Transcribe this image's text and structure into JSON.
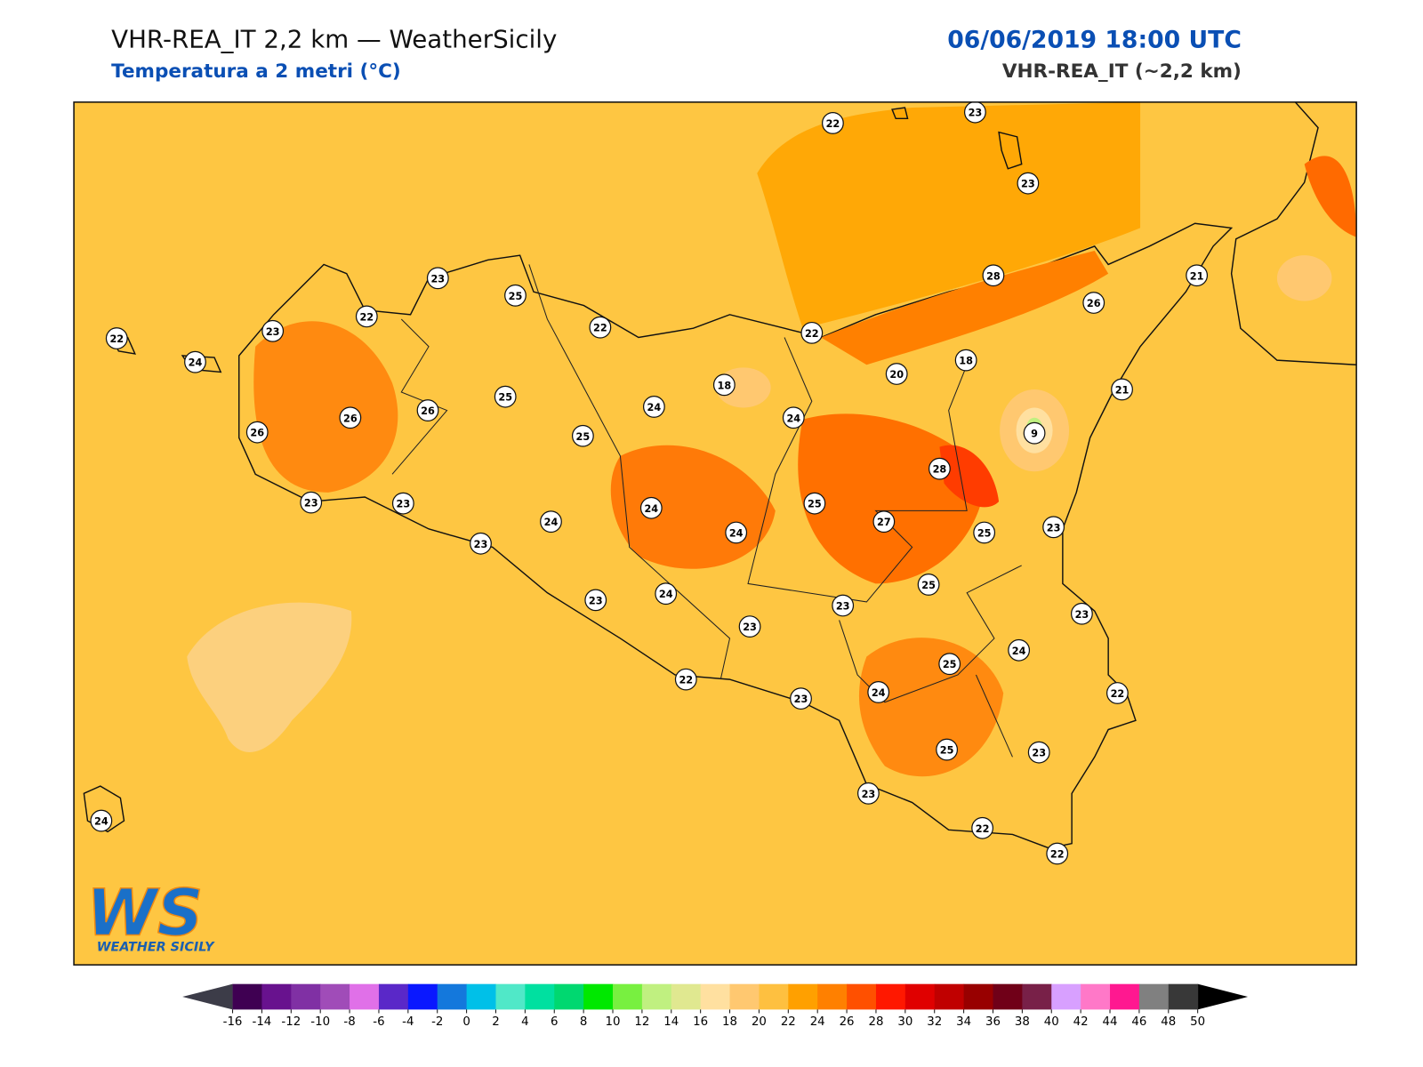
{
  "title": "VHR-REA_IT 2,2 km — WeatherSicily",
  "subtitle": "Temperatura a 2 metri (°C)",
  "datetime": "06/06/2019 18:00 UTC",
  "model": "VHR-REA_IT (~2,2 km)",
  "logo": {
    "mark": "WS",
    "text": "WEATHER SICILY"
  },
  "stations": [
    22,
    23,
    23,
    23,
    25,
    22,
    23,
    22,
    24,
    22,
    22,
    28,
    26,
    21,
    20,
    18,
    18,
    21,
    25,
    24,
    24,
    26,
    26,
    26,
    25,
    9,
    28,
    23,
    23,
    24,
    25,
    24,
    24,
    27,
    25,
    23,
    23,
    25,
    23,
    24,
    23,
    23,
    23,
    24,
    25,
    22,
    23,
    24,
    22,
    25,
    23,
    23,
    22,
    22,
    24
  ],
  "colorbar": {
    "ticks": [
      -16,
      -14,
      -12,
      -10,
      -8,
      -6,
      -4,
      -2,
      0,
      2,
      4,
      6,
      8,
      10,
      12,
      14,
      16,
      18,
      20,
      22,
      24,
      26,
      28,
      30,
      32,
      34,
      36,
      38,
      40,
      42,
      44,
      46,
      48,
      50
    ],
    "colors": [
      "#3f0052",
      "#68128e",
      "#8030a4",
      "#a04cb8",
      "#e070e8",
      "#5a28c8",
      "#0a18ff",
      "#1478dc",
      "#00c0e8",
      "#50e8c8",
      "#00e0a0",
      "#00d870",
      "#00e800",
      "#78f040",
      "#c0f080",
      "#e0e890",
      "#ffe0a0",
      "#ffc870",
      "#fec040",
      "#ffa000",
      "#ff8000",
      "#ff5000",
      "#ff1800",
      "#e00000",
      "#c00000",
      "#980000",
      "#700018",
      "#782048",
      "#d8a0ff",
      "#ff78c8",
      "#ff1890",
      "#808080",
      "#383838"
    ],
    "under": "#3c3c48",
    "over": "#000000"
  }
}
